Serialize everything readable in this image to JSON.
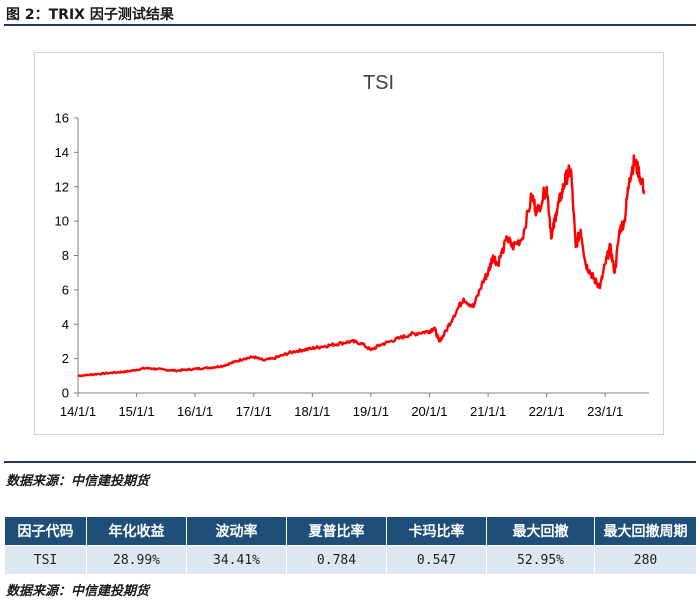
{
  "figure_title": "图 2：TRIX 因子测试结果",
  "source_top": "数据来源：中信建投期货",
  "source_bottom": "数据来源：中信建投期货",
  "colors": {
    "line": "#ff0000",
    "header_bg": "#1f4e79",
    "row_bg": "#dde6f3",
    "rule": "#1f3864"
  },
  "chart_data": {
    "type": "line",
    "title": "TSI",
    "xlabel": "",
    "ylabel": "",
    "ylim": [
      0,
      16
    ],
    "yticks": [
      0,
      2,
      4,
      6,
      8,
      10,
      12,
      14,
      16
    ],
    "xlim": [
      "2014-01-01",
      "2023-10-01"
    ],
    "xticks": [
      "14/1/1",
      "15/1/1",
      "16/1/1",
      "17/1/1",
      "18/1/1",
      "19/1/1",
      "20/1/1",
      "21/1/1",
      "22/1/1",
      "23/1/1"
    ],
    "grid": false,
    "legend": "none",
    "series": [
      {
        "x": [
          "2014-01-01",
          "2014-03-01",
          "2014-05-01",
          "2014-07-01",
          "2014-09-01",
          "2014-11-01",
          "2015-01-01",
          "2015-03-01",
          "2015-05-01",
          "2015-07-01",
          "2015-09-01",
          "2015-11-01",
          "2016-01-01",
          "2016-03-01",
          "2016-05-01",
          "2016-07-01",
          "2016-09-01",
          "2016-11-01",
          "2017-01-01",
          "2017-03-01",
          "2017-05-01",
          "2017-07-01",
          "2017-09-01",
          "2017-11-01",
          "2018-01-01",
          "2018-03-01",
          "2018-05-01",
          "2018-07-01",
          "2018-09-01",
          "2018-11-01",
          "2019-01-01",
          "2019-03-01",
          "2019-05-01",
          "2019-07-01",
          "2019-09-01",
          "2019-11-01",
          "2020-01-01",
          "2020-02-01",
          "2020-03-01",
          "2020-04-01",
          "2020-06-01",
          "2020-08-01",
          "2020-10-01",
          "2020-12-01",
          "2021-01-01",
          "2021-02-01",
          "2021-03-01",
          "2021-05-01",
          "2021-06-01",
          "2021-08-01",
          "2021-10-01",
          "2021-11-01",
          "2022-01-01",
          "2022-02-01",
          "2022-03-01",
          "2022-04-01",
          "2022-05-01",
          "2022-06-01",
          "2022-07-01",
          "2022-08-01",
          "2022-09-01",
          "2022-10-01",
          "2022-11-01",
          "2022-12-01",
          "2023-01-01",
          "2023-02-01",
          "2023-03-01",
          "2023-04-01",
          "2023-05-01",
          "2023-06-01",
          "2023-07-01",
          "2023-08-01",
          "2023-09-01"
        ],
        "y": [
          1.0,
          1.05,
          1.1,
          1.15,
          1.2,
          1.25,
          1.35,
          1.45,
          1.4,
          1.35,
          1.3,
          1.35,
          1.4,
          1.45,
          1.5,
          1.6,
          1.8,
          2.0,
          2.1,
          1.9,
          2.0,
          2.2,
          2.4,
          2.5,
          2.6,
          2.7,
          2.8,
          2.9,
          3.0,
          2.9,
          2.5,
          2.8,
          3.0,
          3.2,
          3.4,
          3.5,
          3.6,
          3.8,
          3.0,
          3.4,
          4.5,
          5.5,
          5.0,
          6.5,
          7.0,
          8.0,
          7.5,
          9.0,
          8.5,
          9.0,
          11.5,
          10.5,
          12.0,
          9.0,
          10.5,
          11.5,
          12.5,
          13.0,
          8.5,
          9.5,
          7.5,
          7.0,
          6.5,
          6.2,
          7.5,
          8.5,
          7.0,
          9.5,
          10.0,
          12.5,
          13.5,
          12.8,
          11.8
        ]
      }
    ]
  },
  "table": {
    "headers": [
      "因子代码",
      "年化收益",
      "波动率",
      "夏普比率",
      "卡玛比率",
      "最大回撤",
      "最大回撤周期"
    ],
    "row": [
      "TSI",
      "28.99%",
      "34.41%",
      "0.784",
      "0.547",
      "52.95%",
      "280"
    ]
  }
}
